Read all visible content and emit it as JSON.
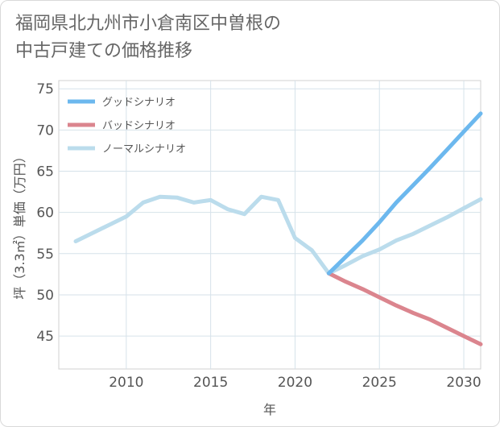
{
  "title": {
    "line1": "福岡県北九州市小倉南区中曽根の",
    "line2": "中古戸建ての価格推移"
  },
  "chart_data": {
    "type": "line",
    "xlabel": "年",
    "ylabel": "坪（3.3㎡）単価（万円）",
    "xlim": [
      2006,
      2031
    ],
    "ylim": [
      41,
      76
    ],
    "xticks": [
      2010,
      2015,
      2020,
      2025,
      2030
    ],
    "yticks": [
      45,
      50,
      55,
      60,
      65,
      70,
      75
    ],
    "grid": true,
    "legend_position": "top-left",
    "series": [
      {
        "name": "グッドシナリオ",
        "color": "#6cb8ee",
        "x": [
          2022,
          2023,
          2024,
          2025,
          2026,
          2027,
          2028,
          2029,
          2030,
          2031
        ],
        "y": [
          52.6,
          54.6,
          56.6,
          58.8,
          61.2,
          63.3,
          65.4,
          67.6,
          69.8,
          72.0
        ]
      },
      {
        "name": "バッドシナリオ",
        "color": "#db858e",
        "x": [
          2022,
          2023,
          2024,
          2025,
          2026,
          2027,
          2028,
          2029,
          2030,
          2031
        ],
        "y": [
          52.6,
          51.6,
          50.7,
          49.7,
          48.7,
          47.8,
          47.0,
          46.0,
          45.0,
          44.0
        ]
      },
      {
        "name": "ノーマルシナリオ",
        "color": "#bbdcec",
        "x": [
          2007,
          2008,
          2009,
          2010,
          2011,
          2012,
          2013,
          2014,
          2015,
          2016,
          2017,
          2018,
          2019,
          2020,
          2021,
          2022,
          2023,
          2024,
          2025,
          2026,
          2027,
          2028,
          2029,
          2030,
          2031
        ],
        "y": [
          56.5,
          57.5,
          58.5,
          59.5,
          61.2,
          61.9,
          61.8,
          61.2,
          61.5,
          60.4,
          59.8,
          61.9,
          61.5,
          56.9,
          55.4,
          52.6,
          53.6,
          54.7,
          55.5,
          56.6,
          57.4,
          58.4,
          59.4,
          60.5,
          61.6
        ]
      }
    ]
  }
}
